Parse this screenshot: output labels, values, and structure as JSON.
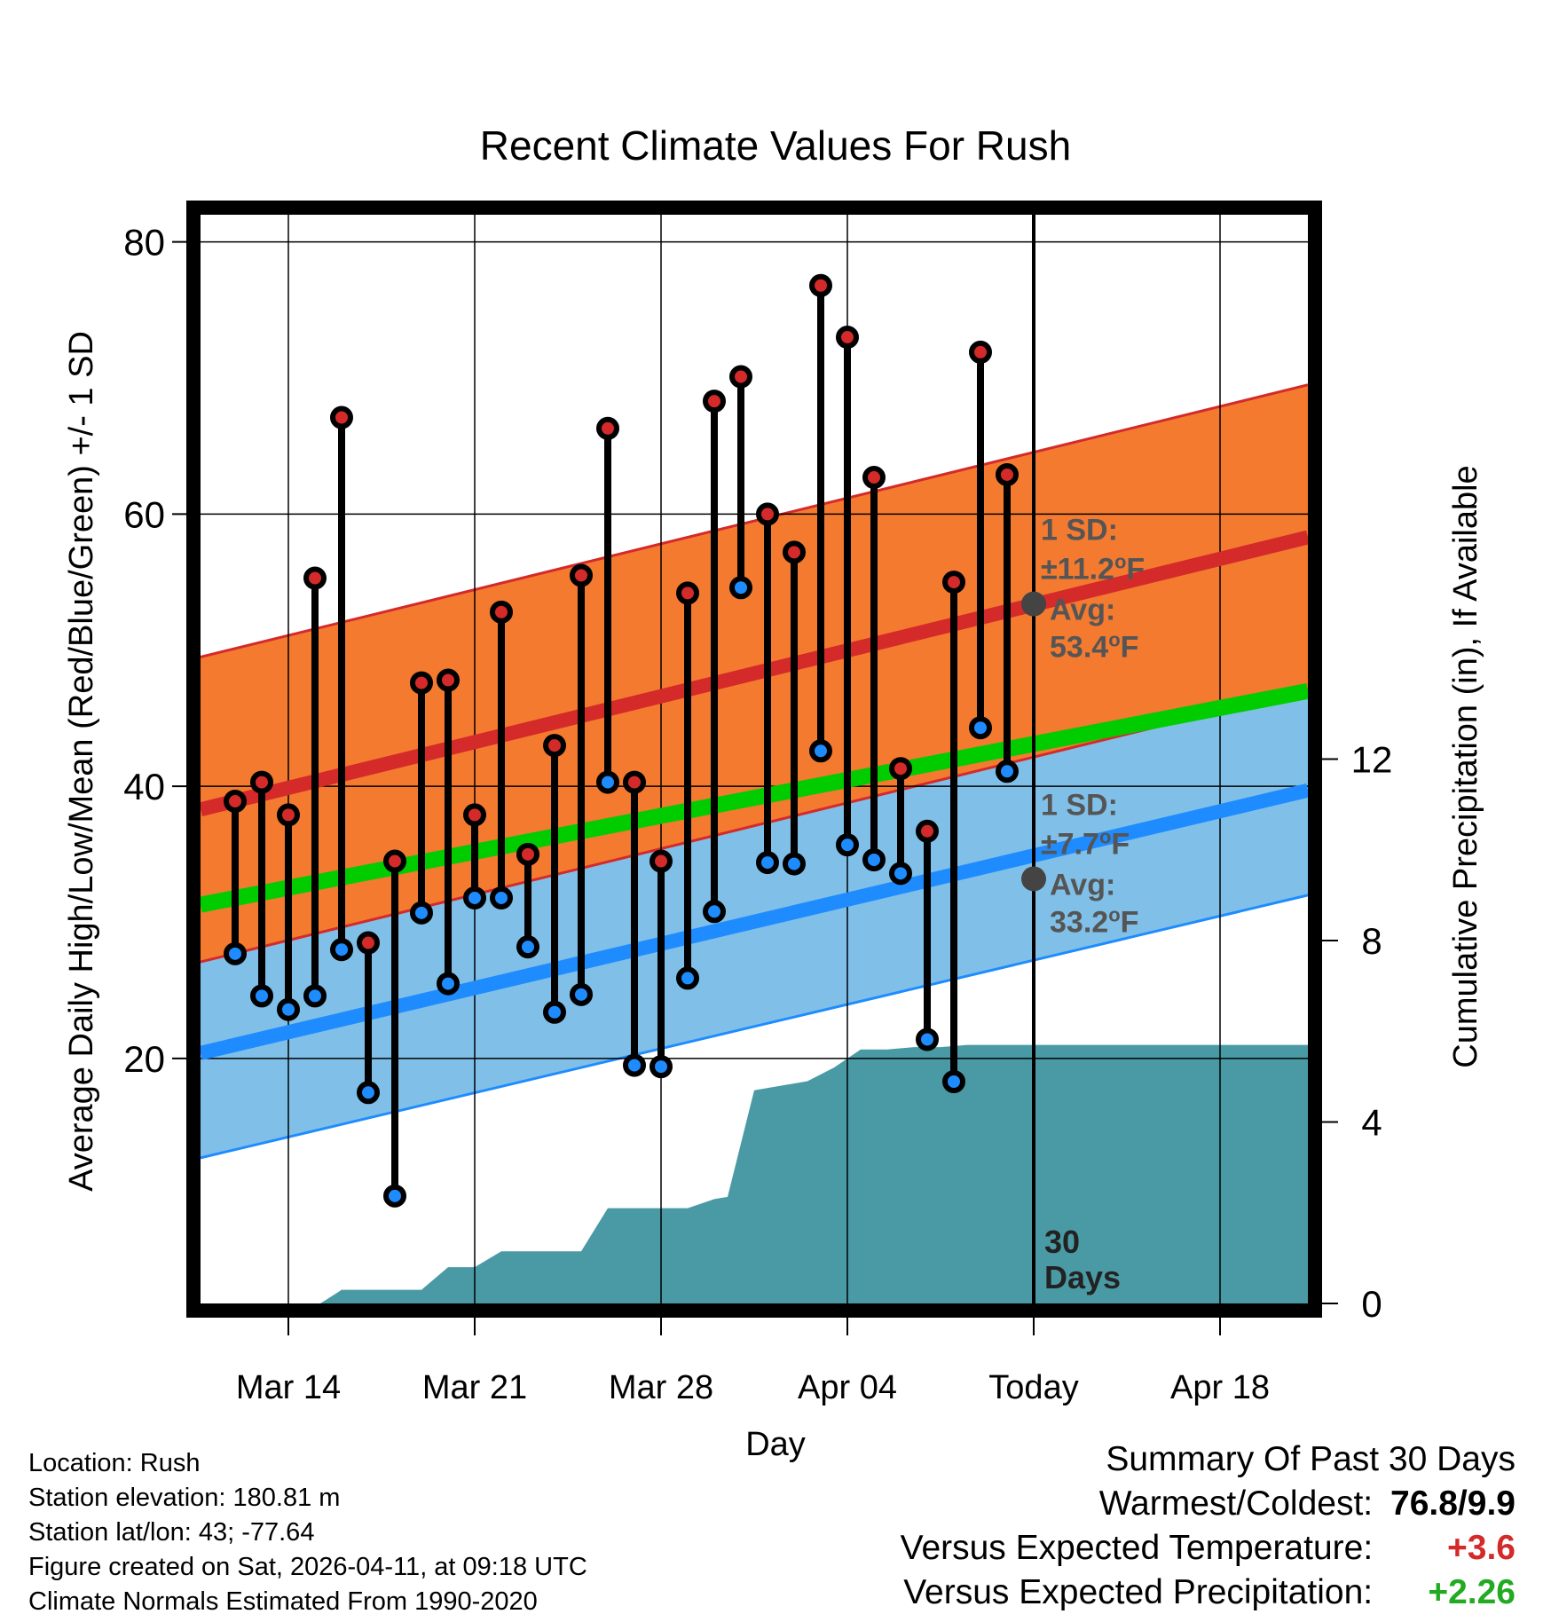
{
  "chart_data": {
    "type": "line",
    "title": "Recent Climate Values For Rush",
    "xlabel": "Day",
    "ylabel": "Average Daily High/Low/Mean (Red/Blue/Green) +/- 1 SD",
    "y2label": "Cumulative Precipitation (in), If Available",
    "xlim": [
      -3.3,
      38.3
    ],
    "ylim": [
      2,
      82
    ],
    "y2lim": [
      0,
      24
    ],
    "yticks": [
      20,
      40,
      60,
      80
    ],
    "yticks_minor": [
      10,
      30,
      50,
      70
    ],
    "y2ticks": [
      0,
      4,
      8,
      12
    ],
    "xticks": [
      {
        "x": 0,
        "label": "Mar 14"
      },
      {
        "x": 7,
        "label": "Mar 21"
      },
      {
        "x": 14,
        "label": "Mar 28"
      },
      {
        "x": 21,
        "label": "Apr 04"
      },
      {
        "x": 28,
        "label": "Today"
      },
      {
        "x": 35,
        "label": "Apr 18"
      }
    ],
    "today_x": 28,
    "today_label": [
      "30",
      "Days"
    ],
    "days": [
      -2,
      -1,
      0,
      1,
      2,
      3,
      4,
      5,
      6,
      7,
      8,
      9,
      10,
      11,
      12,
      13,
      14,
      15,
      16,
      17,
      18,
      19,
      20,
      21,
      22,
      23,
      24,
      25,
      26,
      27
    ],
    "series": [
      {
        "name": "Daily High",
        "color": "#d42a2a",
        "values": [
          38.9,
          40.3,
          37.9,
          55.3,
          67.1,
          28.5,
          34.5,
          47.6,
          47.8,
          37.9,
          52.8,
          35.0,
          43.0,
          55.5,
          66.3,
          40.3,
          34.5,
          54.2,
          68.3,
          70.1,
          60.0,
          57.2,
          76.8,
          73.0,
          62.7,
          41.3,
          36.7,
          55.0,
          71.9,
          62.9
        ]
      },
      {
        "name": "Daily Low",
        "color": "#1e8cff",
        "values": [
          27.7,
          24.6,
          23.6,
          24.6,
          28.0,
          17.5,
          9.9,
          30.7,
          25.5,
          31.8,
          31.8,
          28.2,
          23.4,
          24.7,
          40.3,
          19.5,
          19.4,
          25.9,
          30.8,
          54.6,
          34.4,
          34.3,
          42.6,
          35.7,
          34.6,
          33.6,
          21.4,
          18.3,
          44.3,
          41.1
        ]
      }
    ],
    "normals": {
      "high_avg": [
        -3.3,
        38.3,
        38.3,
        58.3
      ],
      "high_sd_band": "±11.2°F",
      "low_avg": [
        -3.3,
        38.3,
        20.4,
        39.7
      ],
      "low_sd_band": "±7.7°F",
      "mean_avg_start": 31.3,
      "mean_avg_end": 47.0
    },
    "high_label": {
      "sd_title": "1 SD:",
      "sd": "±11.2",
      "unit": "F",
      "avg_title": "Avg:",
      "avg": "53.4",
      "avg_value": 53.4
    },
    "low_label": {
      "sd_title": "1 SD:",
      "sd": "±7.7",
      "unit": "F",
      "avg_title": "Avg:",
      "avg": "33.2",
      "avg_value": 33.2
    },
    "precip": {
      "x": [
        -2.5,
        -1,
        0,
        1,
        1.2,
        2,
        3,
        4,
        5,
        6,
        7,
        8,
        9,
        10,
        11,
        12,
        13,
        14,
        15,
        16,
        16.5,
        17.5,
        18.5,
        19.5,
        20.5,
        21.5,
        22.5,
        23.5,
        24.5,
        25.5,
        26.5,
        27.5,
        38.3
      ],
      "values": [
        0,
        0,
        0,
        0,
        0,
        0.3,
        0.3,
        0.3,
        0.3,
        0.8,
        0.8,
        1.15,
        1.15,
        1.15,
        1.15,
        2.1,
        2.1,
        2.1,
        2.1,
        2.3,
        2.35,
        4.7,
        4.8,
        4.9,
        5.2,
        5.6,
        5.6,
        5.65,
        5.65,
        5.7,
        5.7,
        5.7,
        5.7
      ]
    }
  },
  "footer": {
    "location": "Location: Rush",
    "elevation": "Station elevation: 180.81 m",
    "latlon": "Station lat/lon: 43; -77.64",
    "created": "Figure created on Sat, 2026-04-11, at 09:18 UTC",
    "normals": "Climate Normals Estimated From 1990-2020"
  },
  "summary": {
    "title": "Summary Of Past 30 Days",
    "warm_label": "Warmest/Coldest:",
    "warm_value": "76.8/9.9",
    "temp_label": "Versus Expected Temperature:",
    "temp_value": "+3.6",
    "precip_label": "Versus Expected Precipitation:",
    "precip_value": "+2.26"
  },
  "colors": {
    "high_band": "#f47a30",
    "high_line": "#d42a2a",
    "low_band": "#80c0e8",
    "low_line": "#1e8cff",
    "mean_line": "#00cc00",
    "precip_fill": "#4a9aa5",
    "label_text": "#555555"
  }
}
